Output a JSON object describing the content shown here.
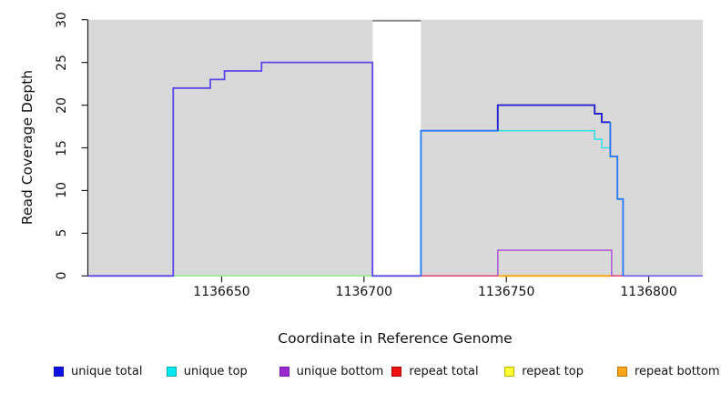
{
  "chart_data": {
    "type": "line",
    "subtype": "step-coverage-plot",
    "title": "",
    "xlabel": "Coordinate in Reference Genome",
    "ylabel": "Read Coverage Depth",
    "xlim": [
      1136603,
      1136819
    ],
    "ylim": [
      0,
      30
    ],
    "xticks": [
      1136650,
      1136700,
      1136750,
      1136800
    ],
    "xtick_labels": [
      "1136650",
      "1136700",
      "1136750",
      "1136800"
    ],
    "yticks": [
      0,
      5,
      10,
      15,
      20,
      25,
      30
    ],
    "ytick_labels": [
      "0",
      "5",
      "10",
      "15",
      "20",
      "25",
      "30"
    ],
    "grid": false,
    "plot_bg": "#d9d9d9",
    "axis_color": "#222222",
    "masked_region": {
      "x0": 1136703,
      "x1": 1136720,
      "fill": "#ffffff",
      "cap_value": 30,
      "cap_color": "#8c8c8c"
    },
    "series": [
      {
        "name": "repeat total",
        "color": "#e04070",
        "width": 1.5,
        "points": [
          [
            1136720,
            0
          ],
          [
            1136791,
            0
          ]
        ]
      },
      {
        "name": "repeat top",
        "color": "#90ee90",
        "width": 1.5,
        "points": [
          [
            1136633,
            0
          ],
          [
            1136703,
            0
          ]
        ]
      },
      {
        "name": "repeat bottom",
        "color": "#ffa500",
        "width": 1.8,
        "points": [
          [
            1136747,
            0
          ],
          [
            1136786.5,
            0
          ]
        ]
      },
      {
        "name": "unique bottom",
        "color": "#ad5fd6",
        "width": 1.6,
        "points": [
          [
            1136747,
            0
          ],
          [
            1136747,
            3
          ],
          [
            1136787,
            3
          ],
          [
            1136787,
            0
          ]
        ]
      },
      {
        "name": "unique total left block",
        "color": "#5b46e8",
        "width": 1.8,
        "points": [
          [
            1136603,
            0
          ],
          [
            1136633,
            0
          ],
          [
            1136633,
            22
          ],
          [
            1136646,
            22
          ],
          [
            1136646,
            23
          ],
          [
            1136651,
            23
          ],
          [
            1136651,
            24
          ],
          [
            1136664,
            24
          ],
          [
            1136664,
            25
          ],
          [
            1136703,
            25
          ],
          [
            1136703,
            0
          ],
          [
            1136720,
            0
          ]
        ]
      },
      {
        "name": "unique total right baseline",
        "color": "#6f5cee",
        "width": 1.6,
        "points": [
          [
            1136791,
            0
          ],
          [
            1136819,
            0
          ]
        ]
      },
      {
        "name": "unique top",
        "color": "#3fdde8",
        "width": 1.6,
        "points": [
          [
            1136747,
            17
          ],
          [
            1136781,
            17
          ],
          [
            1136781,
            16
          ],
          [
            1136783.5,
            16
          ],
          [
            1136783.5,
            15
          ],
          [
            1136786.5,
            15
          ]
        ]
      },
      {
        "name": "unique total right plateau",
        "color": "#2424ce",
        "width": 1.9,
        "points": [
          [
            1136747,
            17
          ],
          [
            1136747,
            20
          ],
          [
            1136781,
            20
          ],
          [
            1136781,
            19
          ],
          [
            1136783.5,
            19
          ],
          [
            1136783.5,
            18
          ],
          [
            1136786.5,
            18
          ]
        ]
      },
      {
        "name": "unique total right rise",
        "color": "#2b7cf2",
        "width": 1.9,
        "points": [
          [
            1136720,
            0
          ],
          [
            1136720,
            17
          ],
          [
            1136747,
            17
          ]
        ]
      },
      {
        "name": "unique total right fall",
        "color": "#2b7cf2",
        "width": 1.9,
        "points": [
          [
            1136786.5,
            18
          ],
          [
            1136786.5,
            14
          ],
          [
            1136789,
            14
          ],
          [
            1136789,
            9
          ],
          [
            1136791,
            9
          ],
          [
            1136791,
            0
          ]
        ]
      }
    ],
    "legend": {
      "position": "bottom",
      "entries": [
        {
          "label": "unique total",
          "fill": "#0f0fe8",
          "border": "#0b0ba8"
        },
        {
          "label": "unique top",
          "fill": "#00e8f0",
          "border": "#00a8b0"
        },
        {
          "label": "unique bottom",
          "fill": "#9a2bd0",
          "border": "#7a1ba8"
        },
        {
          "label": "repeat total",
          "fill": "#ee1111",
          "border": "#aa0000"
        },
        {
          "label": "repeat top",
          "fill": "#ffff33",
          "border": "#b8b800"
        },
        {
          "label": "repeat bottom",
          "fill": "#ffa519",
          "border": "#c07800"
        }
      ]
    }
  }
}
